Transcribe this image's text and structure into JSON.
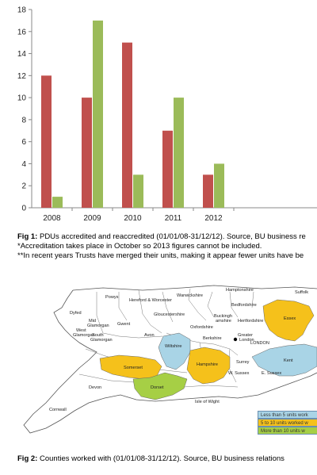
{
  "chart_data": {
    "type": "bar",
    "categories": [
      "2008",
      "2009",
      "2010",
      "2011",
      "2012"
    ],
    "series": [
      {
        "values": [
          12,
          10,
          15,
          7,
          3
        ],
        "color": "#c0504d"
      },
      {
        "values": [
          1,
          17,
          3,
          10,
          4
        ],
        "color": "#9bbb59"
      }
    ],
    "ylim": [
      0,
      18
    ],
    "yticks": [
      "0",
      "2",
      "4",
      "6",
      "8",
      "10",
      "12",
      "14",
      "16",
      "18"
    ],
    "grid": false
  },
  "fig1": {
    "label": "Fig 1:",
    "text": "PDUs accredited and reaccredited (01/01/08-31/12/12). Source, BU business re",
    "note1": "*Accreditation takes place in October so 2013 figures cannot be included.",
    "note2": "**In recent years Trusts have merged their units, making it appear fewer units have be"
  },
  "map": {
    "colors": {
      "low": "#a9d4e6",
      "mid": "#f5c11b",
      "high": "#a6cf45"
    },
    "counties": {
      "powys": "Powys",
      "hereford": "Hereford & Worcester",
      "warwickshire": "Warwickshire",
      "hampshire_top": "Hamptonshire",
      "suffolk": "Suffolk",
      "bedfordshire": "Bedfordshire",
      "dyfed": "Dyfed",
      "gloucestershire": "Gloucestershire",
      "buckingham": "Buckingh",
      "buckingham2": "amshire",
      "hertfordshire": "Hertfordshire",
      "essex": "Essex",
      "oxfordshire": "Oxfordshire",
      "mid": "Mid",
      "glamorgan": "Glamorgan",
      "gwent": "Gwent",
      "west": "West",
      "glamorgan2": "Glamorgan",
      "south": "South",
      "glamorgan3": "Glamorgan",
      "avon": "Avon",
      "berkshire": "Berkshire",
      "wiltshire": "Wiltshire",
      "greater": "Greater",
      "london": "London",
      "london_point": "LONDON",
      "kent": "Kent",
      "somerset": "Somerset",
      "hampshire": "Hampshire",
      "surrey": "Surrey",
      "wsussex": "W. Sussex",
      "esussex": "E. Sussex",
      "devon": "Devon",
      "dorset": "Dorset",
      "isle": "Isle of Wight",
      "cornwall": "Cornwall"
    },
    "legend": {
      "low": "Less than 5 units work",
      "mid": "5 to 10 units worked w",
      "high": "More than 10 units w"
    }
  },
  "fig2": {
    "label": "Fig 2:",
    "text": "Counties worked with  (01/01/08-31/12/12). Source, BU business relations"
  }
}
